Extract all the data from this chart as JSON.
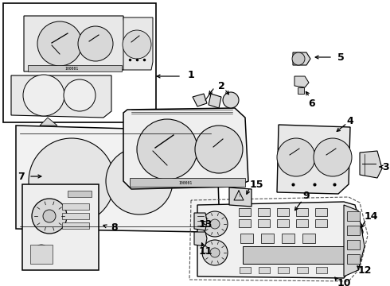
{
  "bg_color": "#ffffff",
  "fig_width": 4.9,
  "fig_height": 3.6,
  "dpi": 100,
  "line_color": "#000000",
  "label_fontsize": 9,
  "label_fontweight": "bold",
  "gray_fill": "#e8e8e8",
  "gray_med": "#d8d8d8",
  "gray_dark": "#c8c8c8",
  "white_fill": "#ffffff"
}
